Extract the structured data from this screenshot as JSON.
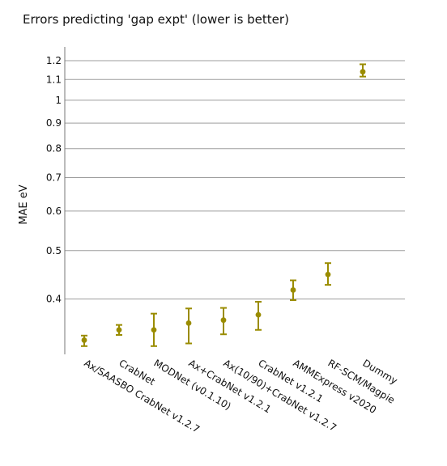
{
  "chart_data": {
    "type": "scatter",
    "title": "Errors predicting 'gap expt' (lower is better)",
    "xlabel": "",
    "ylabel": "MAE eV",
    "y_scale": "log",
    "ylim": [
      0.31,
      1.25
    ],
    "y_ticks": [
      0.4,
      0.5,
      0.6,
      0.7,
      0.8,
      0.9,
      1,
      1.1,
      1.2
    ],
    "y_tick_labels": [
      "0.4",
      "0.5",
      "0.6",
      "0.7",
      "0.8",
      "0.9",
      "1",
      "1.1",
      "1.2"
    ],
    "grid": true,
    "legend": false,
    "marker_color": "#9a8c00",
    "categories": [
      "Ax/SAASBO CrabNet v1.2.7",
      "CrabNet",
      "MODNet (v0.1.10)",
      "Ax+CrabNet v1.2.1",
      "Ax(10/90)+CrabNet v1.2.7",
      "CrabNet v1.2.1",
      "AMMExpress v2020",
      "RF-SCM/Magpie",
      "Dummy"
    ],
    "values": [
      0.331,
      0.347,
      0.347,
      0.358,
      0.363,
      0.372,
      0.417,
      0.448,
      1.14
    ],
    "error_low": [
      0.322,
      0.339,
      0.322,
      0.326,
      0.34,
      0.347,
      0.398,
      0.427,
      1.115
    ],
    "error_high": [
      0.338,
      0.355,
      0.374,
      0.383,
      0.384,
      0.395,
      0.436,
      0.472,
      1.18
    ]
  }
}
